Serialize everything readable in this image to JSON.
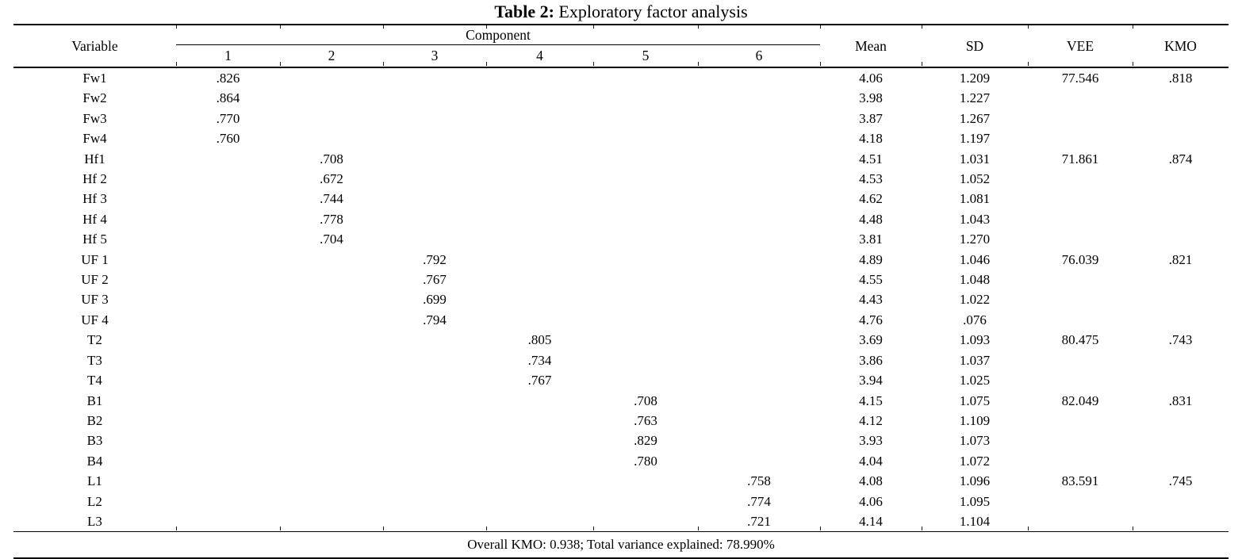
{
  "title": {
    "label": "Table 2:",
    "rest": " Exploratory factor analysis"
  },
  "table": {
    "headers": {
      "variable": "Variable",
      "component": "Component",
      "component_numbers": [
        "1",
        "2",
        "3",
        "4",
        "5",
        "6"
      ],
      "mean": "Mean",
      "sd": "SD",
      "vee": "VEE",
      "kmo": "KMO"
    },
    "rows": [
      {
        "variable": "Fw1",
        "component": 1,
        "loading": ".826",
        "mean": "4.06",
        "sd": "1.209",
        "vee": "77.546",
        "kmo": ".818"
      },
      {
        "variable": "Fw2",
        "component": 1,
        "loading": ".864",
        "mean": "3.98",
        "sd": "1.227",
        "vee": "",
        "kmo": ""
      },
      {
        "variable": "Fw3",
        "component": 1,
        "loading": ".770",
        "mean": "3.87",
        "sd": "1.267",
        "vee": "",
        "kmo": ""
      },
      {
        "variable": "Fw4",
        "component": 1,
        "loading": ".760",
        "mean": "4.18",
        "sd": "1.197",
        "vee": "",
        "kmo": ""
      },
      {
        "variable": "Hf1",
        "component": 2,
        "loading": ".708",
        "mean": "4.51",
        "sd": "1.031",
        "vee": "71.861",
        "kmo": ".874"
      },
      {
        "variable": "Hf 2",
        "component": 2,
        "loading": ".672",
        "mean": "4.53",
        "sd": "1.052",
        "vee": "",
        "kmo": ""
      },
      {
        "variable": "Hf 3",
        "component": 2,
        "loading": ".744",
        "mean": "4.62",
        "sd": "1.081",
        "vee": "",
        "kmo": ""
      },
      {
        "variable": "Hf 4",
        "component": 2,
        "loading": ".778",
        "mean": "4.48",
        "sd": "1.043",
        "vee": "",
        "kmo": ""
      },
      {
        "variable": "Hf 5",
        "component": 2,
        "loading": ".704",
        "mean": "3.81",
        "sd": "1.270",
        "vee": "",
        "kmo": ""
      },
      {
        "variable": "UF 1",
        "component": 3,
        "loading": ".792",
        "mean": "4.89",
        "sd": "1.046",
        "vee": "76.039",
        "kmo": ".821"
      },
      {
        "variable": "UF 2",
        "component": 3,
        "loading": ".767",
        "mean": "4.55",
        "sd": "1.048",
        "vee": "",
        "kmo": ""
      },
      {
        "variable": "UF 3",
        "component": 3,
        "loading": ".699",
        "mean": "4.43",
        "sd": "1.022",
        "vee": "",
        "kmo": ""
      },
      {
        "variable": "UF 4",
        "component": 3,
        "loading": ".794",
        "mean": "4.76",
        "sd": ".076",
        "vee": "",
        "kmo": ""
      },
      {
        "variable": "T2",
        "component": 4,
        "loading": ".805",
        "mean": "3.69",
        "sd": "1.093",
        "vee": "80.475",
        "kmo": ".743"
      },
      {
        "variable": "T3",
        "component": 4,
        "loading": ".734",
        "mean": "3.86",
        "sd": "1.037",
        "vee": "",
        "kmo": ""
      },
      {
        "variable": "T4",
        "component": 4,
        "loading": ".767",
        "mean": "3.94",
        "sd": "1.025",
        "vee": "",
        "kmo": ""
      },
      {
        "variable": "B1",
        "component": 5,
        "loading": ".708",
        "mean": "4.15",
        "sd": "1.075",
        "vee": "82.049",
        "kmo": ".831"
      },
      {
        "variable": "B2",
        "component": 5,
        "loading": ".763",
        "mean": "4.12",
        "sd": "1.109",
        "vee": "",
        "kmo": ""
      },
      {
        "variable": "B3",
        "component": 5,
        "loading": ".829",
        "mean": "3.93",
        "sd": "1.073",
        "vee": "",
        "kmo": ""
      },
      {
        "variable": "B4",
        "component": 5,
        "loading": ".780",
        "mean": "4.04",
        "sd": "1.072",
        "vee": "",
        "kmo": ""
      },
      {
        "variable": "L1",
        "component": 6,
        "loading": ".758",
        "mean": "4.08",
        "sd": "1.096",
        "vee": "83.591",
        "kmo": ".745"
      },
      {
        "variable": "L2",
        "component": 6,
        "loading": ".774",
        "mean": "4.06",
        "sd": "1.095",
        "vee": "",
        "kmo": ""
      },
      {
        "variable": "L3",
        "component": 6,
        "loading": ".721",
        "mean": "4.14",
        "sd": "1.104",
        "vee": "",
        "kmo": ""
      }
    ],
    "footer": "Overall KMO: 0.938; Total variance explained: 78.990%"
  }
}
